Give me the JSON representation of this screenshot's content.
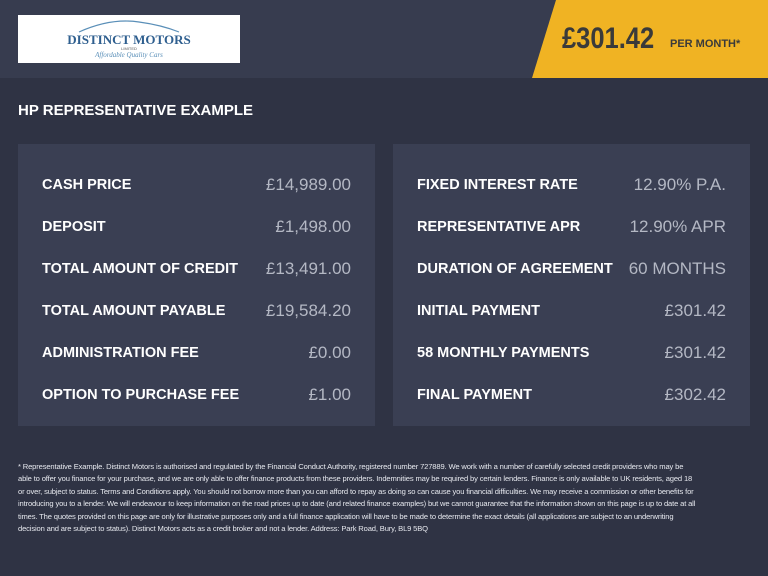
{
  "header": {
    "logo_text": "DISTINCT MOTORS",
    "logo_sub": "LIMITED",
    "logo_tagline": "Affordable Quality Cars",
    "price": "£301.42",
    "per_month": "PER MONTH*",
    "accent": "#f0b323"
  },
  "title": "HP REPRESENTATIVE EXAMPLE",
  "left": [
    {
      "label": "CASH PRICE",
      "value": "£14,989.00"
    },
    {
      "label": "DEPOSIT",
      "value": "£1,498.00"
    },
    {
      "label": "TOTAL AMOUNT OF CREDIT",
      "value": "£13,491.00"
    },
    {
      "label": "TOTAL AMOUNT PAYABLE",
      "value": "£19,584.20"
    },
    {
      "label": "ADMINISTRATION FEE",
      "value": "£0.00"
    },
    {
      "label": "OPTION TO PURCHASE FEE",
      "value": "£1.00"
    }
  ],
  "right": [
    {
      "label": "FIXED INTEREST RATE",
      "value": "12.90% P.A."
    },
    {
      "label": "REPRESENTATIVE APR",
      "value": "12.90% APR"
    },
    {
      "label": "DURATION OF AGREEMENT",
      "value": "60 MONTHS"
    },
    {
      "label": "INITIAL PAYMENT",
      "value": "£301.42"
    },
    {
      "label": "58 MONTHLY PAYMENTS",
      "value": "£301.42"
    },
    {
      "label": "FINAL PAYMENT",
      "value": "£302.42"
    }
  ],
  "footer": "* Representative Example. Distinct Motors is authorised and regulated by the Financial Conduct Authority, registered number 727889. We work with a number of carefully selected credit providers who may be able to offer you finance for your purchase, and we are only able to offer finance products from these providers. Indemnities may be required by certain lenders. Finance is only available to UK residents, aged 18 or over, subject to status. Terms and Conditions apply. You should not borrow more than you can afford to repay as doing so can cause you financial difficulties. We may receive a commission or other benefits for introducing you to a lender. We will endeavour to keep information on the road prices up to date (and related finance examples) but we cannot guarantee that the information shown on this page is up to date at all times. The quotes provided on this page are only for illustrative purposes only and a full finance application will have to be made to determine the exact details (all applications are subject to an underwriting decision and are subject to status). Distinct Motors acts as a credit broker and not a lender. Address: Park Road, Bury, BL9 5BQ"
}
